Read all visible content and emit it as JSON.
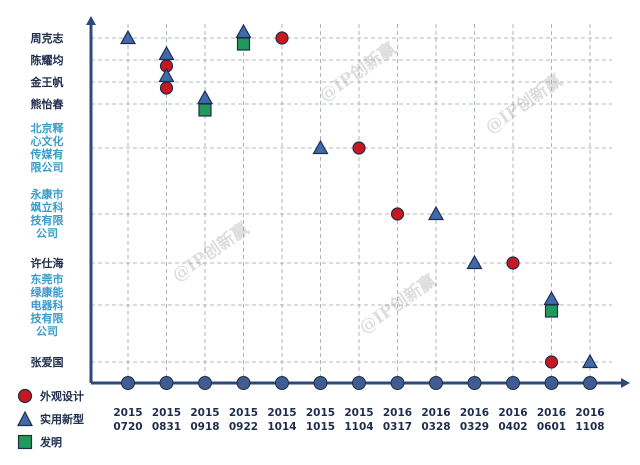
{
  "watermark": "@IP创新赢",
  "legend": [
    {
      "label": "外观设计",
      "marker": "circle",
      "color": "#c8171e"
    },
    {
      "label": "实用新型",
      "marker": "triangle",
      "color": "#3f6bad"
    },
    {
      "label": "发明",
      "marker": "square",
      "color": "#1d9a5c"
    }
  ],
  "chart_data": {
    "type": "scatter",
    "title": "",
    "xlabel": "",
    "ylabel": "",
    "grid": true,
    "legend_position": "bottom-left",
    "categories": [
      "2015\n0720",
      "2015\n0831",
      "2015\n0918",
      "2015\n0922",
      "2015\n1014",
      "2015\n1015",
      "2015\n1104",
      "2016\n0317",
      "2016\n0328",
      "2016\n0329",
      "2016\n0402",
      "2016\n0601",
      "2016\n1108"
    ],
    "rows": [
      {
        "label": "周克志",
        "type": "person"
      },
      {
        "label": "陈耀均",
        "type": "person"
      },
      {
        "label": "金王帆",
        "type": "person"
      },
      {
        "label": "熊怡春",
        "type": "person"
      },
      {
        "label": "北京释\n心文化\n传媒有\n限公司",
        "type": "company"
      },
      {
        "label": "永康市\n飒立科\n技有限\n公司",
        "type": "company"
      },
      {
        "label": "许仕海",
        "type": "person"
      },
      {
        "label": "东莞市\n绿康能\n电器科\n技有限\n公司",
        "type": "company"
      },
      {
        "label": "张爱国",
        "type": "person"
      }
    ],
    "series": [
      {
        "name": "外观设计",
        "marker": "circle",
        "color": "#c8171e",
        "points": [
          [
            1,
            1
          ],
          [
            1,
            2
          ],
          [
            4,
            0
          ],
          [
            6,
            4
          ],
          [
            7,
            5
          ],
          [
            10,
            6
          ],
          [
            11,
            8
          ]
        ]
      },
      {
        "name": "实用新型",
        "marker": "triangle",
        "color": "#3f6bad",
        "points": [
          [
            0,
            0
          ],
          [
            1,
            1
          ],
          [
            1,
            2
          ],
          [
            2,
            3
          ],
          [
            3,
            0
          ],
          [
            5,
            4
          ],
          [
            8,
            5
          ],
          [
            9,
            6
          ],
          [
            11,
            7
          ],
          [
            12,
            8
          ]
        ]
      },
      {
        "name": "发明",
        "marker": "square",
        "color": "#1d9a5c",
        "points": [
          [
            2,
            3
          ],
          [
            3,
            0
          ],
          [
            11,
            7
          ]
        ]
      }
    ]
  }
}
